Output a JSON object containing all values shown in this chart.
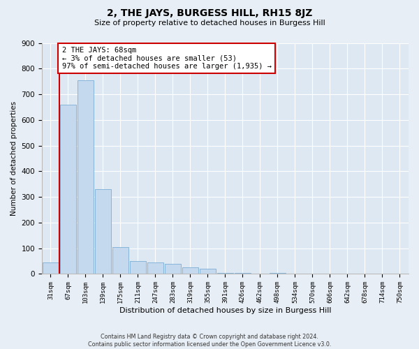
{
  "title": "2, THE JAYS, BURGESS HILL, RH15 8JZ",
  "subtitle": "Size of property relative to detached houses in Burgess Hill",
  "xlabel": "Distribution of detached houses by size in Burgess Hill",
  "ylabel": "Number of detached properties",
  "bar_labels": [
    "31sqm",
    "67sqm",
    "103sqm",
    "139sqm",
    "175sqm",
    "211sqm",
    "247sqm",
    "283sqm",
    "319sqm",
    "355sqm",
    "391sqm",
    "426sqm",
    "462sqm",
    "498sqm",
    "534sqm",
    "570sqm",
    "606sqm",
    "642sqm",
    "678sqm",
    "714sqm",
    "750sqm"
  ],
  "bar_values": [
    45,
    660,
    755,
    330,
    105,
    50,
    45,
    40,
    25,
    20,
    5,
    5,
    0,
    5,
    0,
    0,
    0,
    0,
    0,
    0,
    0
  ],
  "bar_color": "#c5d9ee",
  "bar_edge_color": "#7aadd4",
  "property_line_x": 0.5,
  "annotation_text": "2 THE JAYS: 68sqm\n← 3% of detached houses are smaller (53)\n97% of semi-detached houses are larger (1,935) →",
  "annotation_box_color": "#ffffff",
  "annotation_box_edge_color": "#cc0000",
  "vline_color": "#cc0000",
  "ylim": [
    0,
    900
  ],
  "yticks": [
    0,
    100,
    200,
    300,
    400,
    500,
    600,
    700,
    800,
    900
  ],
  "footer_line1": "Contains HM Land Registry data © Crown copyright and database right 2024.",
  "footer_line2": "Contains public sector information licensed under the Open Government Licence v3.0.",
  "bg_color": "#e8eef5",
  "plot_bg_color": "#dde8f3"
}
